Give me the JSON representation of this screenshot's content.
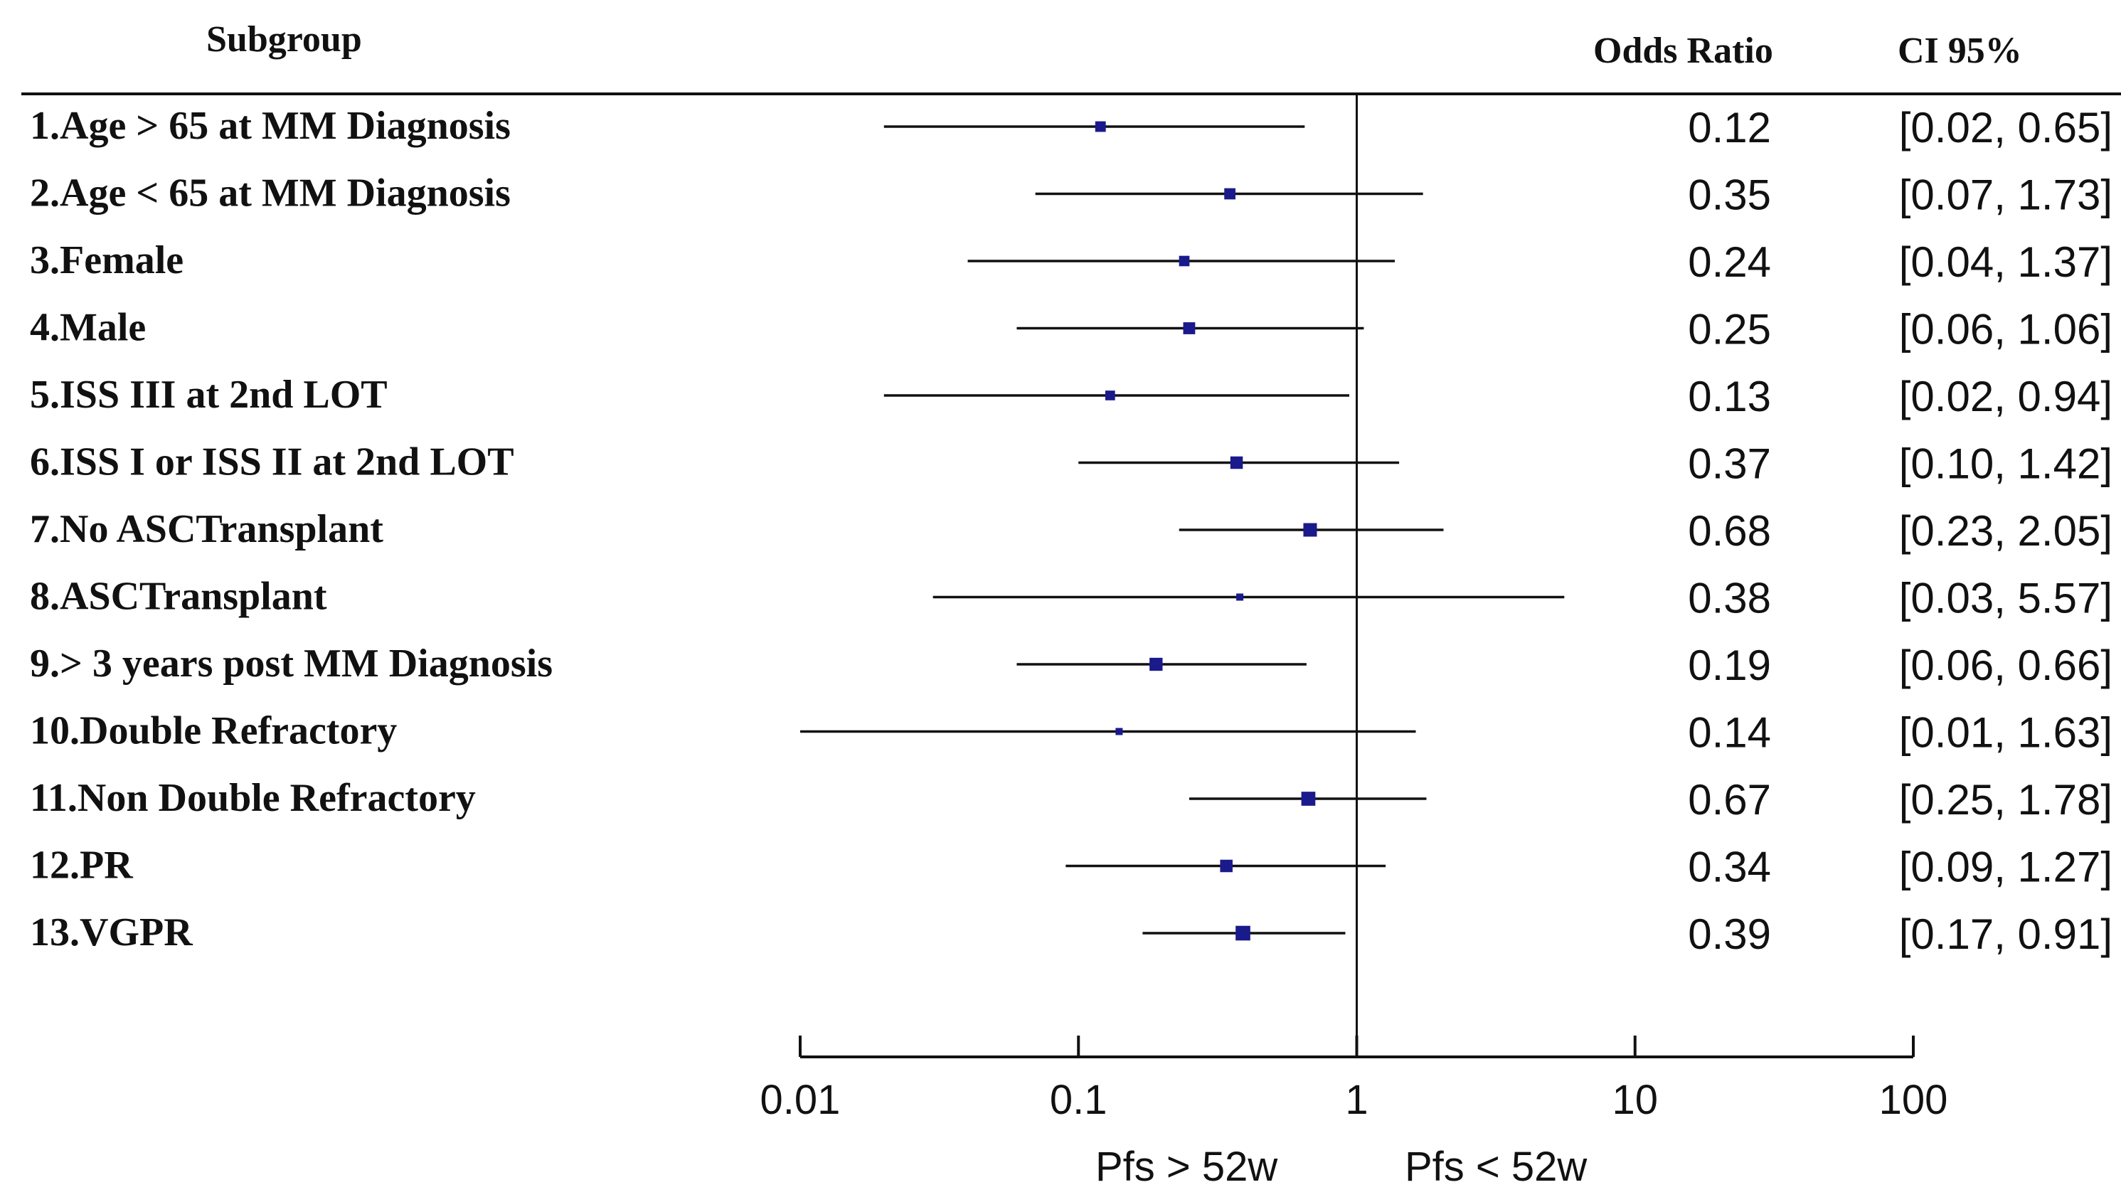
{
  "chart_data": {
    "type": "forest",
    "headers": {
      "subgroup": "Subgroup",
      "odds_ratio": "Odds Ratio",
      "ci": "CI 95%"
    },
    "x_scale": "log",
    "xlim": [
      0.01,
      100
    ],
    "reference_line": 1,
    "x_ticks": [
      "0.01",
      "0.1",
      "1",
      "10",
      "100"
    ],
    "direction_labels": {
      "left": "Pfs > 52w",
      "right": "Pfs < 52w"
    },
    "marker_color": "#1a1a8c",
    "rows": [
      {
        "label": "1.Age > 65 at MM Diagnosis",
        "or": 0.12,
        "lo": 0.02,
        "hi": 0.65,
        "or_text": "0.12",
        "ci_text": "[0.02, 0.65]"
      },
      {
        "label": "2.Age < 65 at MM Diagnosis",
        "or": 0.35,
        "lo": 0.07,
        "hi": 1.73,
        "or_text": "0.35",
        "ci_text": "[0.07, 1.73]"
      },
      {
        "label": "3.Female",
        "or": 0.24,
        "lo": 0.04,
        "hi": 1.37,
        "or_text": "0.24",
        "ci_text": "[0.04, 1.37]"
      },
      {
        "label": "4.Male",
        "or": 0.25,
        "lo": 0.06,
        "hi": 1.06,
        "or_text": "0.25",
        "ci_text": "[0.06, 1.06]"
      },
      {
        "label": "5.ISS III at 2nd LOT",
        "or": 0.13,
        "lo": 0.02,
        "hi": 0.94,
        "or_text": "0.13",
        "ci_text": "[0.02, 0.94]"
      },
      {
        "label": "6.ISS I or ISS II at 2nd LOT",
        "or": 0.37,
        "lo": 0.1,
        "hi": 1.42,
        "or_text": "0.37",
        "ci_text": "[0.10, 1.42]"
      },
      {
        "label": "7.No ASCTransplant",
        "or": 0.68,
        "lo": 0.23,
        "hi": 2.05,
        "or_text": "0.68",
        "ci_text": "[0.23, 2.05]"
      },
      {
        "label": "8.ASCTransplant",
        "or": 0.38,
        "lo": 0.03,
        "hi": 5.57,
        "or_text": "0.38",
        "ci_text": "[0.03, 5.57]"
      },
      {
        "label": "9.> 3 years post MM Diagnosis",
        "or": 0.19,
        "lo": 0.06,
        "hi": 0.66,
        "or_text": "0.19",
        "ci_text": "[0.06, 0.66]"
      },
      {
        "label": "10.Double Refractory",
        "or": 0.14,
        "lo": 0.01,
        "hi": 1.63,
        "or_text": "0.14",
        "ci_text": "[0.01, 1.63]"
      },
      {
        "label": "11.Non Double Refractory",
        "or": 0.67,
        "lo": 0.25,
        "hi": 1.78,
        "or_text": "0.67",
        "ci_text": "[0.25, 1.78]"
      },
      {
        "label": "12.PR",
        "or": 0.34,
        "lo": 0.09,
        "hi": 1.27,
        "or_text": "0.34",
        "ci_text": "[0.09, 1.27]"
      },
      {
        "label": "13.VGPR",
        "or": 0.39,
        "lo": 0.17,
        "hi": 0.91,
        "or_text": "0.39",
        "ci_text": "[0.17, 0.91]"
      }
    ]
  }
}
